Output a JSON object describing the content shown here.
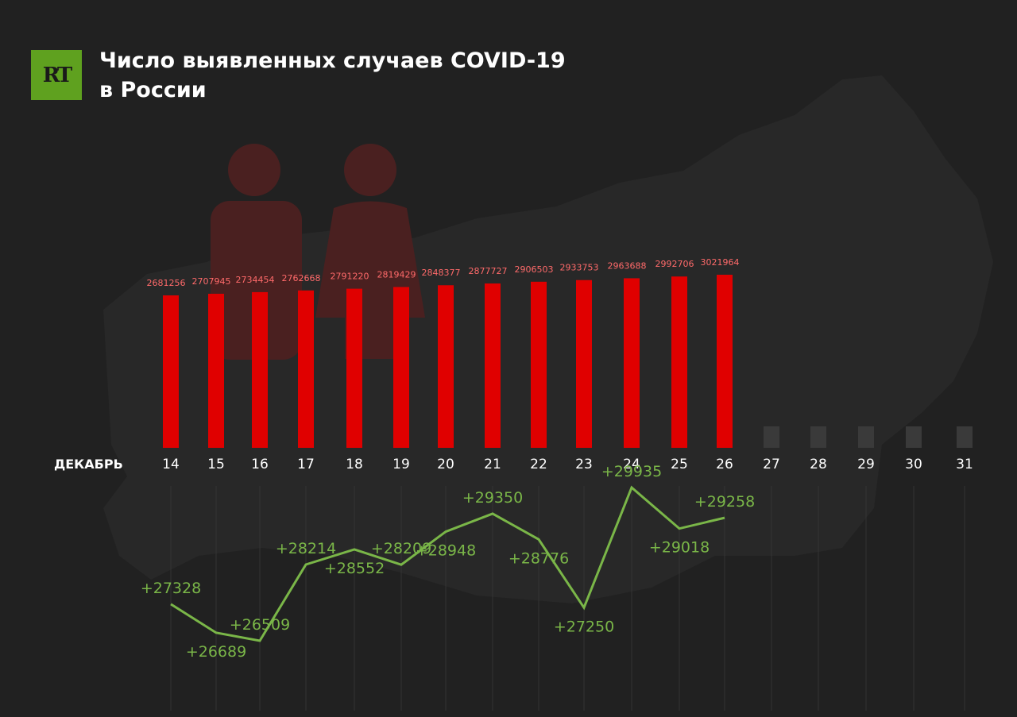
{
  "header": {
    "logo_text": "RT",
    "title_line1": "Число выявленных случаев COVID-19",
    "title_line2": "в России"
  },
  "colors": {
    "background": "#212121",
    "bar": "#e00000",
    "bar_label": "#ff6a6a",
    "placeholder_bar": "#3a3a3a",
    "line": "#7ab648",
    "logo_bg": "#5fa11f",
    "axis_text": "#ffffff",
    "gridline": "#333333",
    "silhouette": "#4a2020"
  },
  "chart_data": [
    {
      "type": "bar",
      "x_axis_label": "ДЕКАБРЬ",
      "categories": [
        "14",
        "15",
        "16",
        "17",
        "18",
        "19",
        "20",
        "21",
        "22",
        "23",
        "24",
        "25",
        "26",
        "27",
        "28",
        "29",
        "30",
        "31"
      ],
      "values": [
        2681256,
        2707945,
        2734454,
        2762668,
        2791220,
        2819429,
        2848377,
        2877727,
        2906503,
        2933753,
        2963688,
        2992706,
        3021964,
        null,
        null,
        null,
        null,
        null
      ],
      "series_name": ""
    },
    {
      "type": "line",
      "categories": [
        "14",
        "15",
        "16",
        "17",
        "18",
        "19",
        "20",
        "21",
        "22",
        "23",
        "24",
        "25",
        "26"
      ],
      "values": [
        27328,
        26689,
        26509,
        28214,
        28552,
        28209,
        28948,
        29350,
        28776,
        27250,
        29935,
        29018,
        29258
      ],
      "labels": [
        "+27328",
        "+26689",
        "+26509",
        "+28214",
        "+28552",
        "+28209",
        "+28948",
        "+29350",
        "+28776",
        "+27250",
        "+29935",
        "+29018",
        "+29258"
      ],
      "label_positions": [
        "above",
        "below",
        "above",
        "above",
        "below",
        "above",
        "below",
        "above",
        "below",
        "below",
        "above",
        "below",
        "above"
      ]
    }
  ]
}
